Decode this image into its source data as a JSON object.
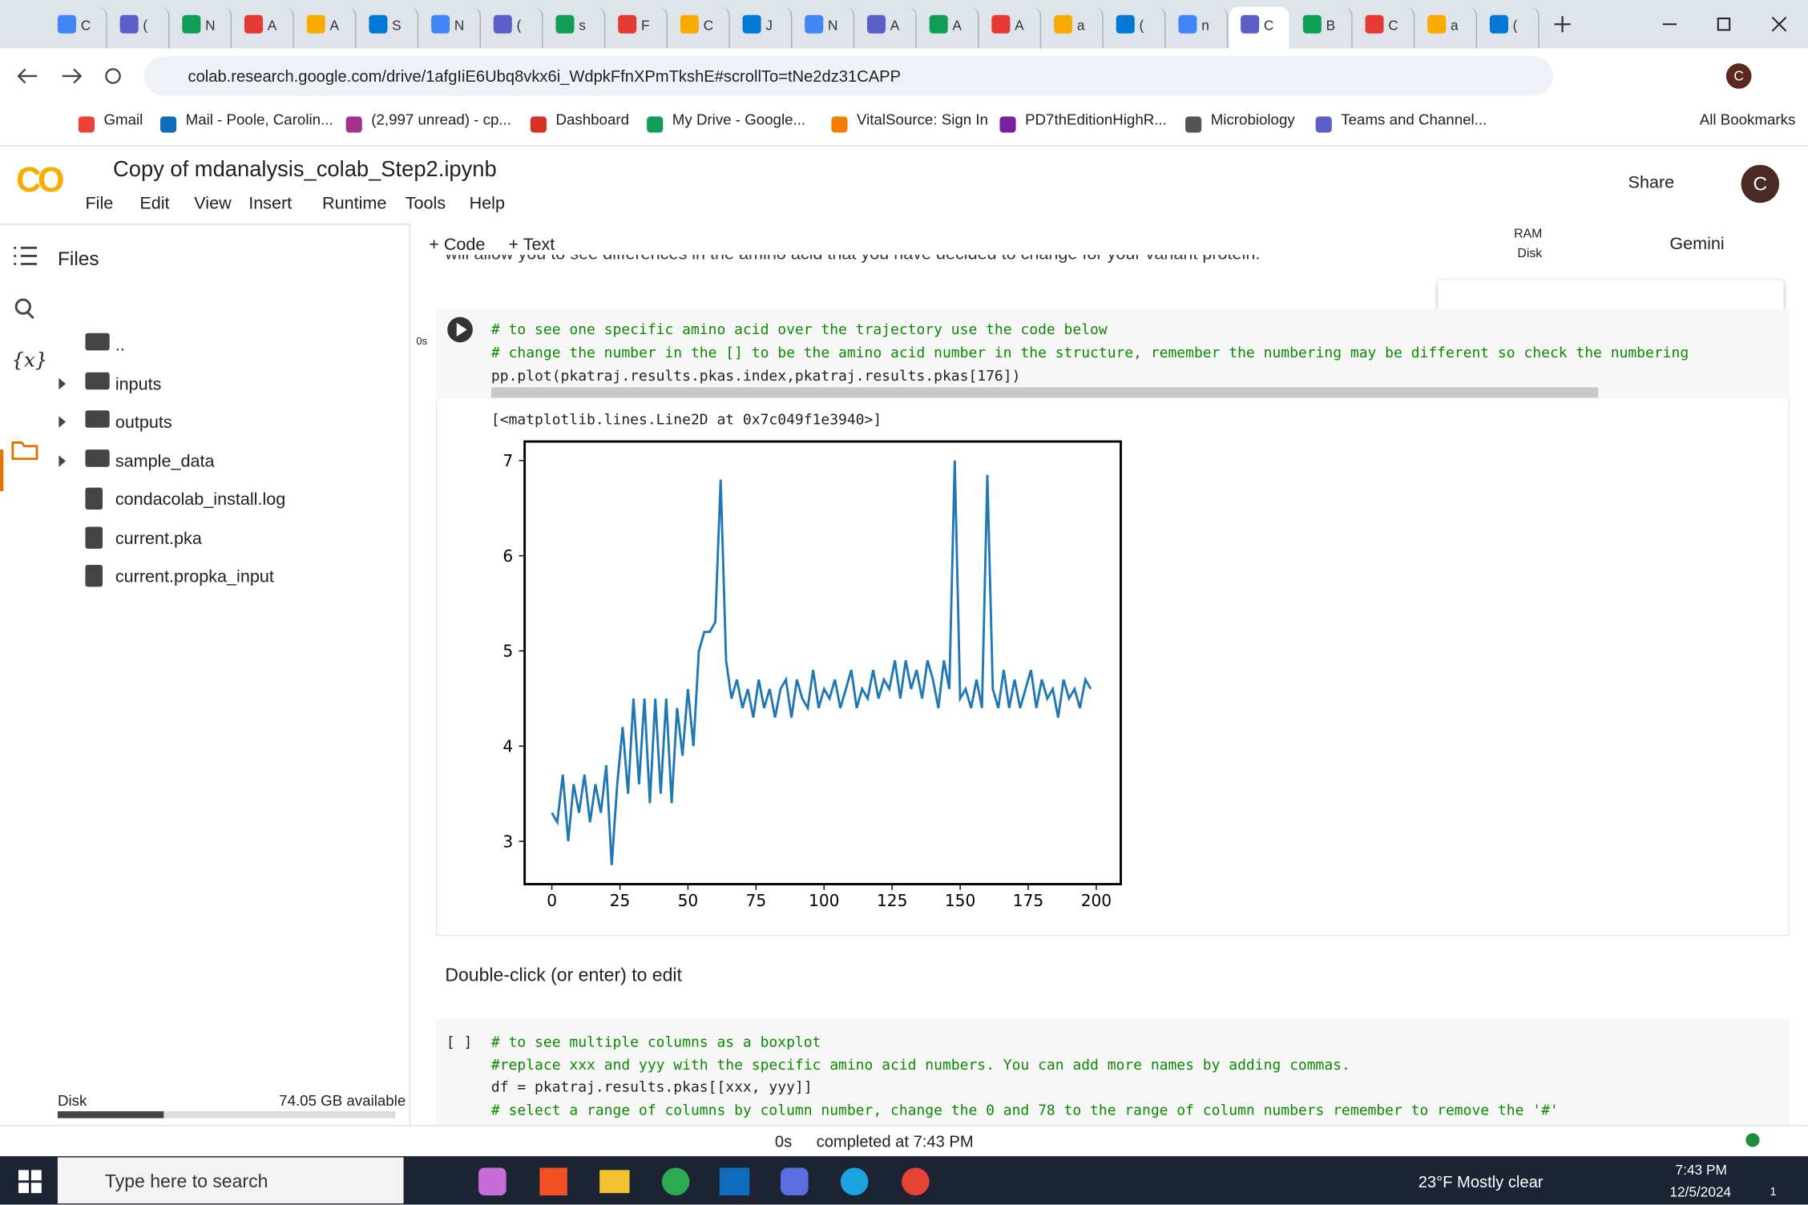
{
  "browser": {
    "tabs": [
      "C",
      "(",
      "N",
      "A",
      "A",
      "S",
      "N",
      "(",
      "s",
      "F",
      "C",
      "J",
      "N",
      "A",
      "A",
      "A",
      "a",
      "(",
      "n",
      "C",
      "B",
      "C",
      "a",
      "("
    ],
    "url": "colab.research.google.com/drive/1afgIiE6Ubq8vkx6i_WdpkFfnXPmTkshE#scrollTo=tNe2dz31CAPP",
    "bookmarks": [
      "Gmail",
      "Mail - Poole, Carolin...",
      "(2,997 unread) - cp...",
      "Dashboard",
      "My Drive - Google...",
      "VitalSource: Sign In",
      "PD7thEditionHighR...",
      "Microbiology",
      "Teams and Channel..."
    ],
    "all_bookmarks": "All Bookmarks",
    "profile": "C"
  },
  "colab": {
    "logo": "CO",
    "title": "Copy of mdanalysis_colab_Step2.ipynb",
    "menu": [
      "File",
      "Edit",
      "View",
      "Insert",
      "Runtime",
      "Tools",
      "Help"
    ],
    "share": "Share",
    "avatar": "C",
    "toolbar": {
      "code": "+ Code",
      "text": "+ Text",
      "ram": "RAM",
      "disk": "Disk",
      "gemini": "Gemini"
    }
  },
  "sidebar": {
    "title": "Files",
    "variables_icon": "{x}",
    "items": [
      "..",
      "inputs",
      "outputs",
      "sample_data",
      "condacolab_install.log",
      "current.pka",
      "current.propka_input"
    ],
    "disk_label": "Disk",
    "disk_free": "74.05 GB available"
  },
  "notebook": {
    "cut_text": "will allow you to see differences in the amino acid that you have decided to change for your variant protein.",
    "cell1": {
      "exec_time": "0s",
      "code": [
        "# to see one specific amino acid over the trajectory use the code below",
        "# change the number in the [] to be the amino acid number in the structure, remember the numbering may be different so check the numbering",
        "pp.plot(pkatraj.results.pkas.index,pkatraj.results.pkas[176])"
      ],
      "output": "[<matplotlib.lines.Line2D at 0x7c049f1e3940>]"
    },
    "text_cell": "Double-click (or enter) to edit",
    "cell2": {
      "prompt": "[ ]",
      "code": [
        "# to see multiple columns as a boxplot",
        "#replace xxx and yyy with the specific amino acid numbers. You can add more names by adding commas.",
        "df = pkatraj.results.pkas[[xxx, yyy]]",
        "# select a range of columns by column number, change the 0 and 78 to the range of column numbers remember to remove the '#'"
      ]
    }
  },
  "chart_data": {
    "type": "line",
    "color": "#1f77b4",
    "x": [
      0,
      2,
      4,
      6,
      8,
      10,
      12,
      14,
      16,
      18,
      20,
      22,
      24,
      26,
      28,
      30,
      32,
      34,
      36,
      38,
      40,
      42,
      44,
      46,
      48,
      50,
      52,
      54,
      56,
      58,
      60,
      62,
      64,
      66,
      68,
      70,
      72,
      74,
      76,
      78,
      80,
      82,
      84,
      86,
      88,
      90,
      92,
      94,
      96,
      98,
      100,
      102,
      104,
      106,
      108,
      110,
      112,
      114,
      116,
      118,
      120,
      122,
      124,
      126,
      128,
      130,
      132,
      134,
      136,
      138,
      140,
      142,
      144,
      146,
      148,
      150,
      152,
      154,
      156,
      158,
      160,
      162,
      164,
      166,
      168,
      170,
      172,
      174,
      176,
      178,
      180,
      182,
      184,
      186,
      188,
      190,
      192,
      194,
      196,
      198
    ],
    "values": [
      3.3,
      3.2,
      3.7,
      3.0,
      3.6,
      3.3,
      3.7,
      3.2,
      3.6,
      3.3,
      3.8,
      2.75,
      3.6,
      4.2,
      3.5,
      4.5,
      3.6,
      4.5,
      3.4,
      4.5,
      3.5,
      4.5,
      3.4,
      4.4,
      3.9,
      4.6,
      4.0,
      5.0,
      5.2,
      5.2,
      5.3,
      6.8,
      4.9,
      4.5,
      4.7,
      4.4,
      4.6,
      4.3,
      4.7,
      4.4,
      4.6,
      4.3,
      4.6,
      4.7,
      4.3,
      4.7,
      4.5,
      4.4,
      4.8,
      4.4,
      4.6,
      4.5,
      4.7,
      4.4,
      4.6,
      4.8,
      4.4,
      4.6,
      4.5,
      4.8,
      4.5,
      4.7,
      4.6,
      4.9,
      4.5,
      4.9,
      4.6,
      4.8,
      4.5,
      4.9,
      4.7,
      4.4,
      4.9,
      4.6,
      7.0,
      4.5,
      4.6,
      4.4,
      4.7,
      4.4,
      6.85,
      4.6,
      4.4,
      4.8,
      4.4,
      4.7,
      4.4,
      4.6,
      4.8,
      4.4,
      4.7,
      4.5,
      4.6,
      4.3,
      4.7,
      4.5,
      4.6,
      4.4,
      4.7,
      4.6
    ],
    "xlim": [
      -10,
      209
    ],
    "ylim": [
      2.55,
      7.2
    ],
    "xticks": [
      0,
      25,
      50,
      75,
      100,
      125,
      150,
      175,
      200
    ],
    "yticks": [
      3,
      4,
      5,
      6,
      7
    ]
  },
  "status": {
    "time": "0s",
    "text": "completed at 7:43 PM"
  },
  "taskbar": {
    "search": "Type here to search",
    "weather": "23°F  Mostly clear",
    "time": "7:43 PM",
    "date": "12/5/2024",
    "notifications": "1"
  }
}
